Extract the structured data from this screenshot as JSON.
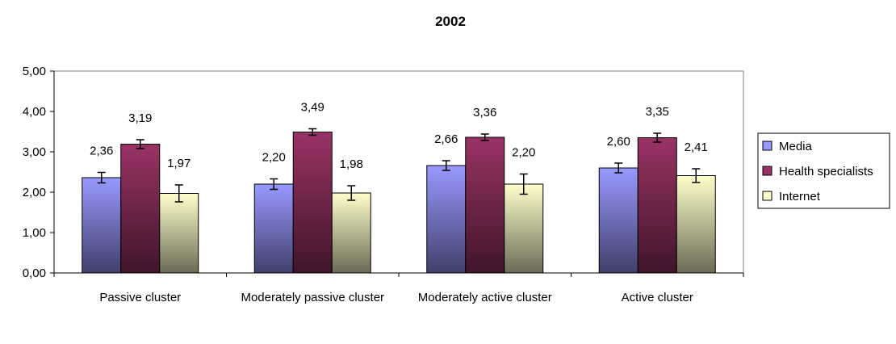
{
  "chart_data": {
    "type": "bar",
    "title": "2002",
    "xlabel": "",
    "ylabel": "",
    "categories": [
      "Passive cluster",
      "Moderately passive cluster",
      "Moderately active cluster",
      "Active cluster"
    ],
    "series": [
      {
        "name": "Media",
        "color": "#9999ff",
        "values": [
          2.36,
          2.2,
          2.66,
          2.6
        ],
        "labels": [
          "2,36",
          "2,20",
          "2,66",
          "2,60"
        ],
        "error": [
          0.13,
          0.13,
          0.12,
          0.12
        ]
      },
      {
        "name": "Health specialists",
        "color": "#993366",
        "values": [
          3.19,
          3.49,
          3.36,
          3.35
        ],
        "labels": [
          "3,19",
          "3,49",
          "3,36",
          "3,35"
        ],
        "error": [
          0.11,
          0.08,
          0.08,
          0.11
        ]
      },
      {
        "name": "Internet",
        "color": "#ffffcc",
        "values": [
          1.97,
          1.98,
          2.2,
          2.41
        ],
        "labels": [
          "1,97",
          "1,98",
          "2,20",
          "2,41"
        ],
        "error": [
          0.21,
          0.18,
          0.25,
          0.17
        ]
      }
    ],
    "ylim": [
      0,
      5
    ],
    "yticks": [
      0,
      1,
      2,
      3,
      4,
      5
    ],
    "ytick_labels": [
      "0,00",
      "1,00",
      "2,00",
      "3,00",
      "4,00",
      "5,00"
    ],
    "grid": false,
    "legend": "right",
    "error_bars": true
  }
}
